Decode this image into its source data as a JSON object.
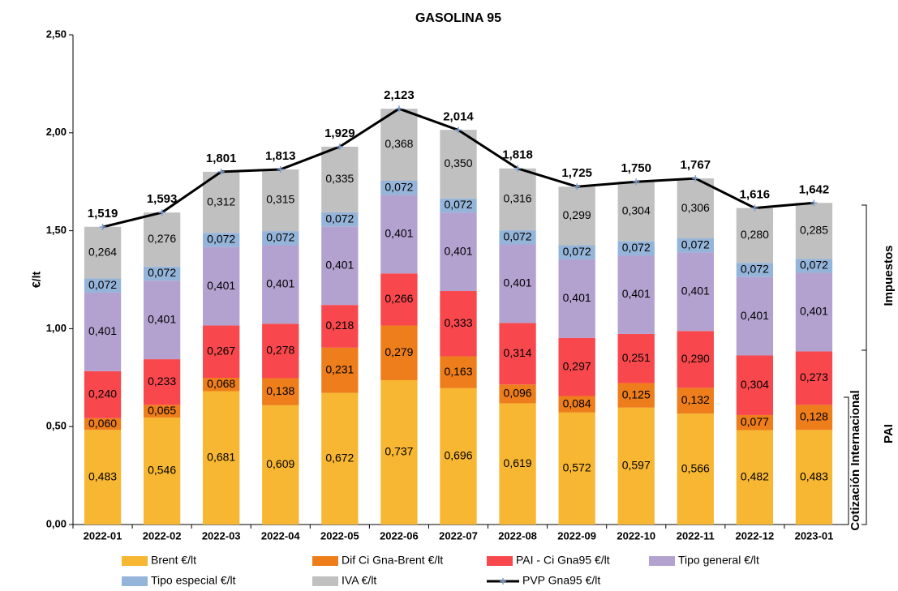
{
  "chart_data": {
    "type": "bar",
    "stacked": true,
    "title": "GASOLINA 95",
    "y_label": "€/lt",
    "categories": [
      "2022-01",
      "2022-02",
      "2022-03",
      "2022-04",
      "2022-05",
      "2022-06",
      "2022-07",
      "2022-08",
      "2022-09",
      "2022-10",
      "2022-11",
      "2022-12",
      "2023-01"
    ],
    "series": [
      {
        "name": "Brent €/lt",
        "color": "#f8b732",
        "values": [
          0.483,
          0.546,
          0.681,
          0.609,
          0.672,
          0.737,
          0.696,
          0.619,
          0.572,
          0.597,
          0.566,
          0.482,
          0.483
        ],
        "value_labels": [
          "0,483",
          "0,546",
          "0,681",
          "0,609",
          "0,672",
          "0,737",
          "0,696",
          "0,619",
          "0,572",
          "0,597",
          "0,566",
          "0,482",
          "0,483"
        ]
      },
      {
        "name": "Dif Ci Gna-Brent €/lt",
        "color": "#ee7d1b",
        "values": [
          0.06,
          0.065,
          0.068,
          0.138,
          0.231,
          0.279,
          0.163,
          0.096,
          0.084,
          0.125,
          0.132,
          0.077,
          0.128
        ],
        "value_labels": [
          "0,060",
          "0,065",
          "0,068",
          "0,138",
          "0,231",
          "0,279",
          "0,163",
          "0,096",
          "0,084",
          "0,125",
          "0,132",
          "0,077",
          "0,128"
        ]
      },
      {
        "name": "PAI - Ci Gna95 €/lt",
        "color": "#f8484d",
        "values": [
          0.24,
          0.233,
          0.267,
          0.278,
          0.218,
          0.266,
          0.333,
          0.314,
          0.297,
          0.251,
          0.29,
          0.304,
          0.273
        ],
        "value_labels": [
          "0,240",
          "0,233",
          "0,267",
          "0,278",
          "0,218",
          "0,266",
          "0,333",
          "0,314",
          "0,297",
          "0,251",
          "0,290",
          "0,304",
          "0,273"
        ]
      },
      {
        "name": "Tipo general €/lt",
        "color": "#b3a2d0",
        "values": [
          0.401,
          0.401,
          0.401,
          0.401,
          0.401,
          0.401,
          0.401,
          0.401,
          0.401,
          0.401,
          0.401,
          0.401,
          0.401
        ],
        "value_labels": [
          "0,401",
          "0,401",
          "0,401",
          "0,401",
          "0,401",
          "0,401",
          "0,401",
          "0,401",
          "0,401",
          "0,401",
          "0,401",
          "0,401",
          "0,401"
        ]
      },
      {
        "name": "Tipo especial €/lt",
        "color": "#95b4d9",
        "values": [
          0.072,
          0.072,
          0.072,
          0.072,
          0.072,
          0.072,
          0.072,
          0.072,
          0.072,
          0.072,
          0.072,
          0.072,
          0.072
        ],
        "value_labels": [
          "0,072",
          "0,072",
          "0,072",
          "0,072",
          "0,072",
          "0,072",
          "0,072",
          "0,072",
          "0,072",
          "0,072",
          "0,072",
          "0,072",
          "0,072"
        ]
      },
      {
        "name": "IVA €/lt",
        "color": "#c0c0c0",
        "values": [
          0.264,
          0.276,
          0.312,
          0.315,
          0.335,
          0.368,
          0.35,
          0.316,
          0.299,
          0.304,
          0.306,
          0.28,
          0.285
        ],
        "value_labels": [
          "0,264",
          "0,276",
          "0,312",
          "0,315",
          "0,335",
          "0,368",
          "0,350",
          "0,316",
          "0,299",
          "0,304",
          "0,306",
          "0,280",
          "0,285"
        ]
      },
      {
        "name": "PVP Gna95 €/lt",
        "color": "#000000",
        "type": "line",
        "marker_color": "#7f9fd0",
        "values": [
          1.519,
          1.593,
          1.801,
          1.813,
          1.929,
          2.123,
          2.014,
          1.818,
          1.725,
          1.75,
          1.767,
          1.616,
          1.642
        ],
        "value_labels": [
          "1,519",
          "1,593",
          "1,801",
          "1,813",
          "1,929",
          "2,123",
          "2,014",
          "1,818",
          "1,725",
          "1,750",
          "1,767",
          "1,616",
          "1,642"
        ]
      }
    ],
    "ylim": [
      0,
      2.5
    ],
    "yticks": [
      {
        "value": 0,
        "label": "0,00"
      },
      {
        "value": 0.5,
        "label": "0,50"
      },
      {
        "value": 1,
        "label": "1,00"
      },
      {
        "value": 1.5,
        "label": "1,50"
      },
      {
        "value": 2,
        "label": "2,00"
      },
      {
        "value": 2.5,
        "label": "2,50"
      }
    ],
    "legend": "bottom",
    "annotations": [
      {
        "text": "Impuestos"
      },
      {
        "text": "PAI"
      },
      {
        "text": "Cotización Internacional"
      }
    ]
  }
}
